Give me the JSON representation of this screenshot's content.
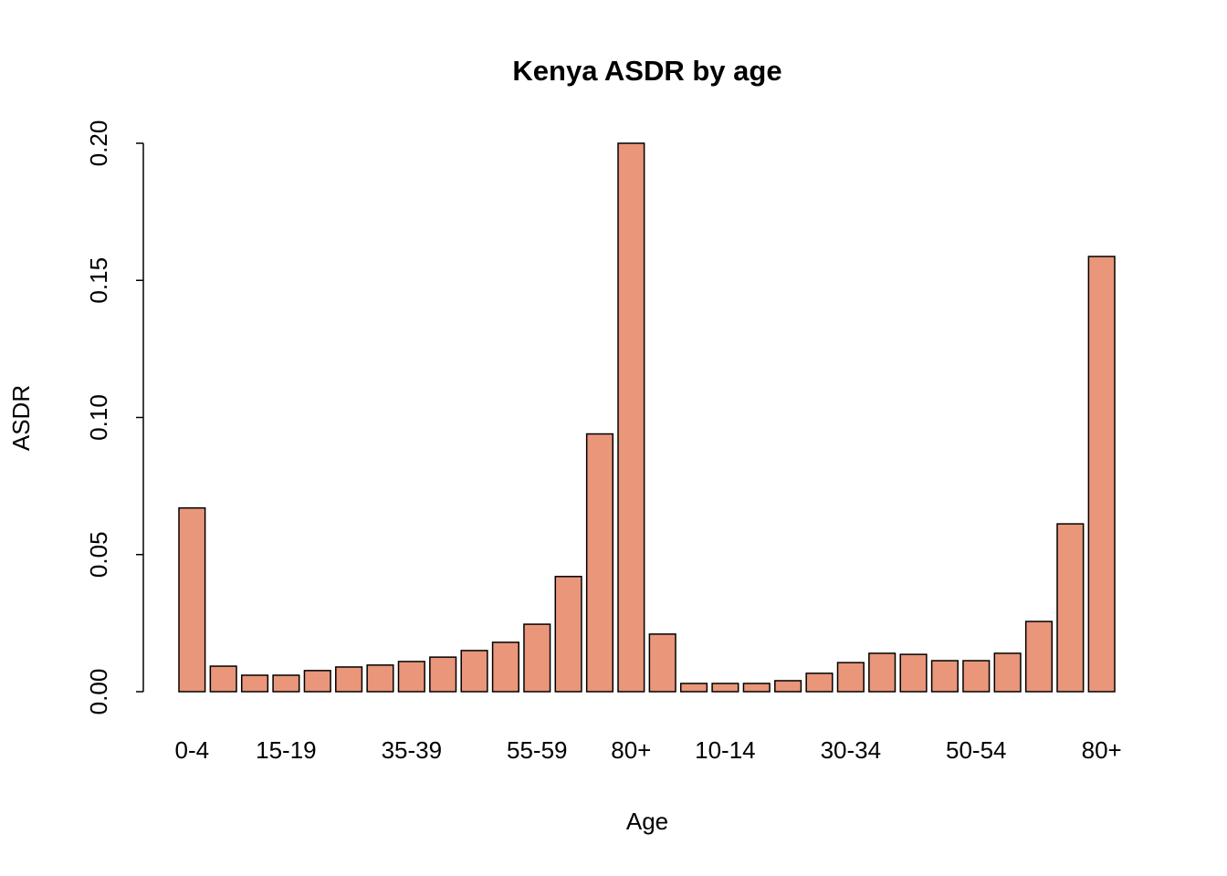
{
  "chart_data": {
    "type": "bar",
    "title": "Kenya ASDR by age",
    "x_label": "Age",
    "y_label": "ASDR",
    "categories": [
      "0-4",
      null,
      null,
      "15-19",
      null,
      null,
      null,
      "35-39",
      null,
      null,
      null,
      "55-59",
      null,
      null,
      "80+",
      null,
      null,
      "10-14",
      null,
      null,
      null,
      "30-34",
      null,
      null,
      null,
      "50-54",
      null,
      null,
      null,
      "80+"
    ],
    "values": [
      0.067,
      0.0093,
      0.006,
      0.006,
      0.0077,
      0.009,
      0.0097,
      0.011,
      0.0126,
      0.015,
      0.018,
      0.0246,
      0.042,
      0.094,
      0.2,
      0.021,
      0.003,
      0.003,
      0.003,
      0.004,
      0.0067,
      0.0106,
      0.014,
      0.0136,
      0.0113,
      0.0113,
      0.014,
      0.0256,
      0.0612,
      0.1587
    ],
    "color": "#e9967a",
    "ylim": [
      0,
      0.2
    ],
    "yticks": [
      {
        "value": 0,
        "label": "0.00"
      },
      0.05,
      {
        "value": 0.1,
        "label": "0.10"
      },
      0.15,
      {
        "value": 0.2,
        "label": "0.20"
      }
    ]
  }
}
